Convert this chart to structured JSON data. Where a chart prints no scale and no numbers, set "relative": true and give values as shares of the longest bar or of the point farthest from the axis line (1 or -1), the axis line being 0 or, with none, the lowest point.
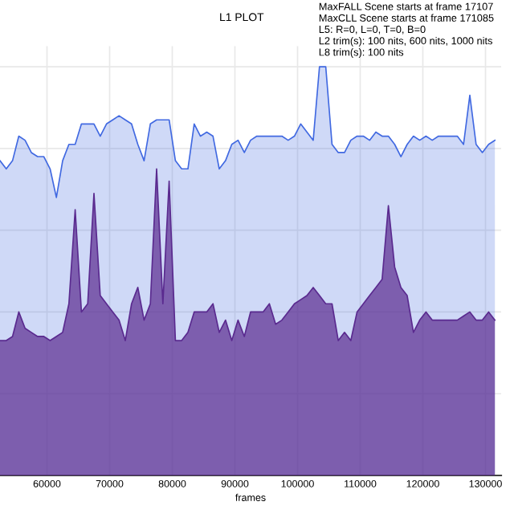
{
  "chart_data": {
    "type": "area",
    "title": "L1 PLOT",
    "annotations": [
      "MaxFALL Scene starts at frame 17107\nMaxCLL Scene starts at frame 171085\nL5: R=0, L=0, T=0, B=0\nL2 trim(s): 100 nits, 600 nits, 1000 nits\nL8 trim(s): 100 nits"
    ],
    "xlabel": "frames",
    "relative": true,
    "grid": true,
    "xlim": [
      52500,
      132500
    ],
    "xticks": [
      60000,
      70000,
      80000,
      90000,
      100000,
      110000,
      120000,
      130000
    ],
    "x": [
      52500,
      53500,
      54500,
      55500,
      56500,
      57500,
      58500,
      59500,
      60500,
      61500,
      62500,
      63500,
      64500,
      65500,
      66500,
      67500,
      68500,
      69500,
      70500,
      71500,
      72500,
      73500,
      74500,
      75500,
      76500,
      77500,
      78500,
      79500,
      80500,
      81500,
      82500,
      83500,
      84500,
      85500,
      86500,
      87500,
      88500,
      89500,
      90500,
      91500,
      92500,
      93500,
      94500,
      95500,
      96500,
      97500,
      98500,
      99500,
      100500,
      101500,
      102500,
      103500,
      104500,
      105500,
      106500,
      107500,
      108500,
      109500,
      110500,
      111500,
      112500,
      113500,
      114500,
      115500,
      116500,
      117500,
      118500,
      119500,
      120500,
      121500,
      122500,
      123500,
      124500,
      125500,
      126500,
      127500,
      128500,
      129500,
      130500,
      131500
    ],
    "series": [
      {
        "color": "#4169e1",
        "values": [
          0.77,
          0.75,
          0.77,
          0.83,
          0.82,
          0.79,
          0.78,
          0.78,
          0.75,
          0.68,
          0.77,
          0.81,
          0.81,
          0.86,
          0.86,
          0.86,
          0.83,
          0.86,
          0.87,
          0.88,
          0.87,
          0.86,
          0.81,
          0.77,
          0.86,
          0.87,
          0.87,
          0.87,
          0.77,
          0.75,
          0.75,
          0.86,
          0.83,
          0.84,
          0.83,
          0.75,
          0.77,
          0.81,
          0.82,
          0.79,
          0.82,
          0.83,
          0.83,
          0.83,
          0.83,
          0.83,
          0.82,
          0.83,
          0.86,
          0.84,
          0.82,
          1.0,
          1.0,
          0.81,
          0.79,
          0.79,
          0.82,
          0.83,
          0.83,
          0.82,
          0.84,
          0.83,
          0.83,
          0.81,
          0.78,
          0.81,
          0.83,
          0.82,
          0.83,
          0.82,
          0.83,
          0.83,
          0.83,
          0.83,
          0.81,
          0.93,
          0.81,
          0.79,
          0.81,
          0.82
        ]
      },
      {
        "color": "#5a2a8f",
        "values": [
          0.33,
          0.33,
          0.34,
          0.4,
          0.36,
          0.35,
          0.34,
          0.34,
          0.33,
          0.34,
          0.35,
          0.42,
          0.65,
          0.4,
          0.42,
          0.69,
          0.44,
          0.42,
          0.4,
          0.38,
          0.33,
          0.42,
          0.46,
          0.38,
          0.42,
          0.75,
          0.42,
          0.72,
          0.33,
          0.33,
          0.35,
          0.4,
          0.4,
          0.4,
          0.42,
          0.35,
          0.38,
          0.33,
          0.38,
          0.34,
          0.4,
          0.4,
          0.4,
          0.42,
          0.37,
          0.38,
          0.4,
          0.42,
          0.43,
          0.44,
          0.46,
          0.44,
          0.42,
          0.42,
          0.33,
          0.35,
          0.33,
          0.4,
          0.42,
          0.44,
          0.46,
          0.48,
          0.66,
          0.51,
          0.46,
          0.44,
          0.35,
          0.38,
          0.4,
          0.38,
          0.38,
          0.38,
          0.38,
          0.38,
          0.39,
          0.4,
          0.38,
          0.38,
          0.4,
          0.38
        ]
      }
    ]
  }
}
